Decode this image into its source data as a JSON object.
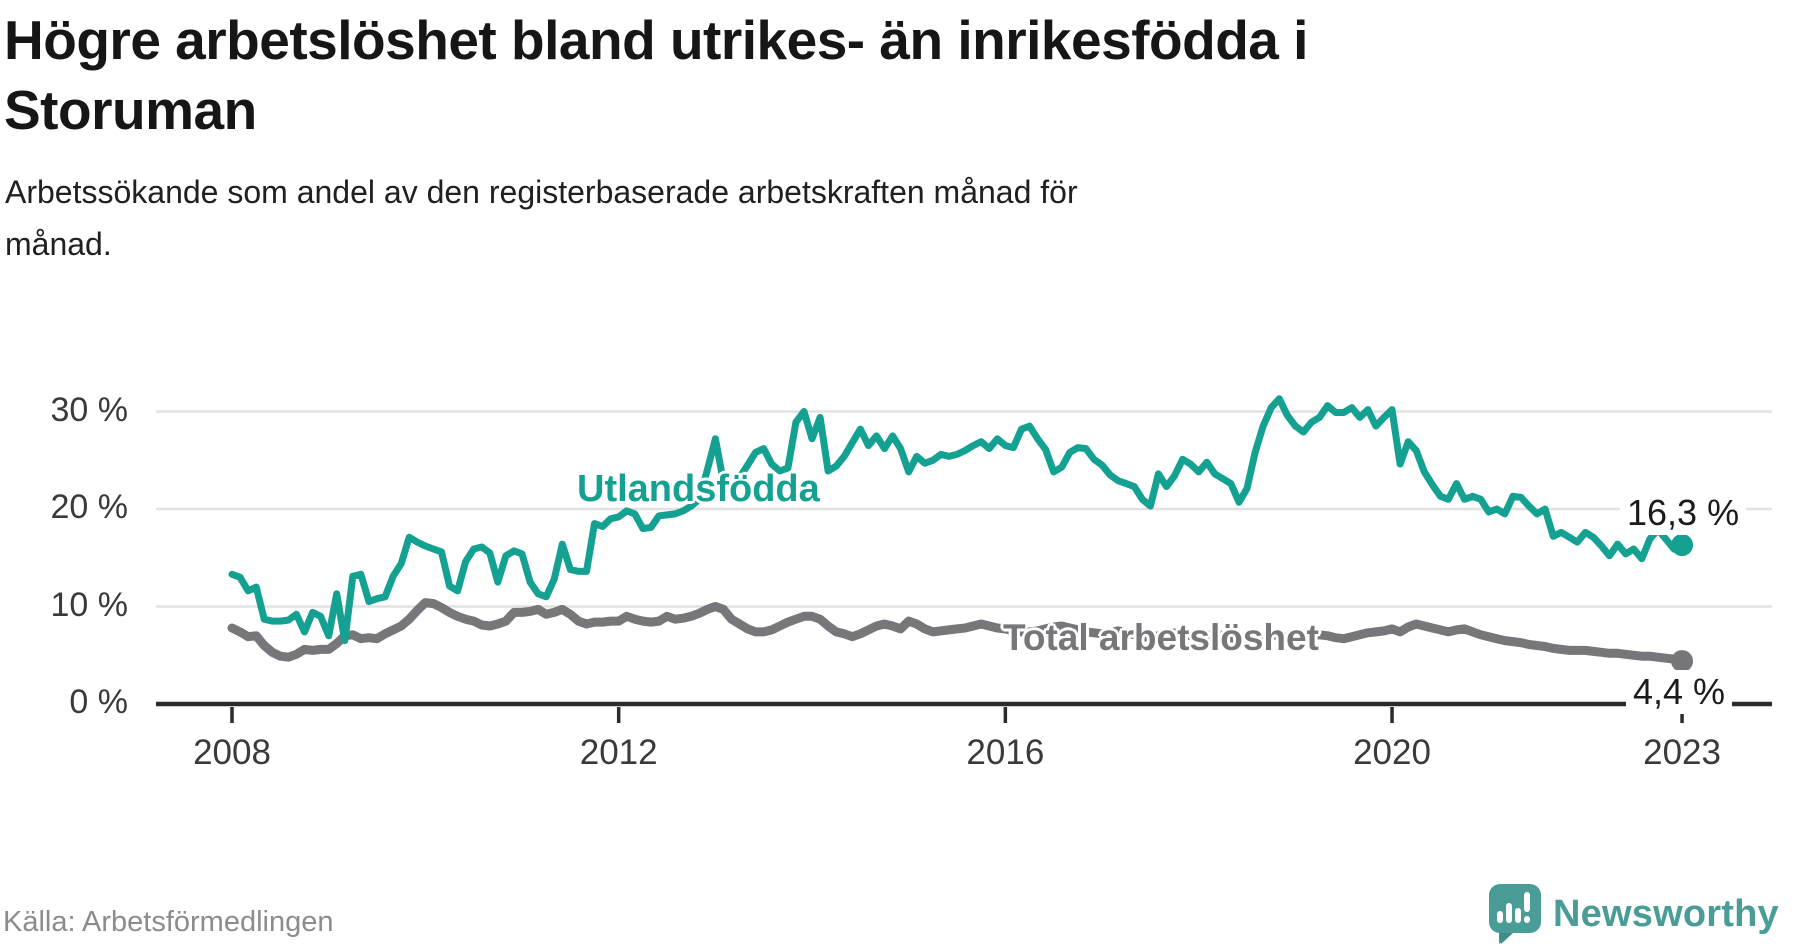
{
  "header": {
    "title_line1": "Högre arbetslöshet bland utrikes- än inrikesfödda i",
    "title_line2": "Storuman",
    "subtitle_line1": "Arbetssökande som andel av den registerbaserade arbetskraften månad för",
    "subtitle_line2": "månad."
  },
  "footer": {
    "source": "Källa: Arbetsförmedlingen",
    "brand": "Newsworthy"
  },
  "colors": {
    "accent_teal": "#15a191",
    "line_gray": "#76777a",
    "logo_teal": "#4a9c96",
    "logo_teal_dark": "#3d8e88",
    "grid": "#e2e2e2",
    "axis": "#2b2b2b"
  },
  "chart_data": {
    "type": "line",
    "title": "Högre arbetslöshet bland utrikes- än inrikesfödda i Storuman",
    "subtitle": "Arbetssökande som andel av den registerbaserade arbetskraften månad för månad.",
    "x_start_year": 2008,
    "points_per_month": 1,
    "x_ticks": [
      {
        "year": 2008,
        "label": "2008"
      },
      {
        "year": 2012,
        "label": "2012"
      },
      {
        "year": 2016,
        "label": "2016"
      },
      {
        "year": 2020,
        "label": "2020"
      },
      {
        "year": 2023,
        "label": "2023"
      }
    ],
    "y_ticks": [
      {
        "value": 0,
        "label": "0 %"
      },
      {
        "value": 10,
        "label": "10 %"
      },
      {
        "value": 20,
        "label": "20 %"
      },
      {
        "value": 30,
        "label": "30 %"
      }
    ],
    "ylim": [
      0,
      32.5
    ],
    "legend_position": "inline-labels",
    "grid": "horizontal",
    "series": [
      {
        "name": "Utlandsfödda",
        "color": "#15a191",
        "end_label": "16,3 %",
        "end_value": 16.3,
        "values": [
          13.3,
          13.0,
          11.6,
          12.0,
          8.7,
          8.5,
          8.5,
          8.6,
          9.2,
          7.4,
          9.4,
          9.0,
          7.0,
          11.3,
          6.5,
          13.1,
          13.3,
          10.5,
          10.8,
          11.0,
          13.1,
          14.4,
          17.1,
          16.6,
          16.2,
          15.9,
          15.6,
          12.1,
          11.6,
          14.6,
          15.9,
          16.1,
          15.5,
          12.5,
          15.2,
          15.7,
          15.4,
          12.5,
          11.3,
          11.0,
          12.8,
          16.4,
          13.8,
          13.6,
          13.6,
          18.5,
          18.2,
          19.0,
          19.2,
          19.8,
          19.5,
          18.0,
          18.1,
          19.3,
          19.4,
          19.5,
          19.8,
          20.3,
          21.0,
          24.0,
          27.2,
          22.8,
          22.3,
          23.2,
          24.5,
          25.8,
          26.2,
          24.6,
          23.9,
          24.2,
          28.9,
          30.0,
          27.2,
          29.4,
          23.9,
          24.4,
          25.4,
          26.8,
          28.2,
          26.5,
          27.5,
          26.2,
          27.5,
          26.2,
          23.8,
          25.4,
          24.7,
          25.0,
          25.6,
          25.4,
          25.6,
          26.0,
          26.5,
          26.9,
          26.2,
          27.2,
          26.5,
          26.3,
          28.2,
          28.5,
          27.2,
          26.1,
          23.8,
          24.3,
          25.8,
          26.3,
          26.2,
          25.1,
          24.5,
          23.5,
          22.9,
          22.6,
          22.3,
          21.0,
          20.3,
          23.6,
          22.3,
          23.4,
          25.1,
          24.6,
          23.8,
          24.8,
          23.6,
          23.1,
          22.6,
          20.7,
          22.1,
          25.8,
          28.5,
          30.4,
          31.3,
          29.6,
          28.5,
          27.9,
          28.9,
          29.4,
          30.6,
          29.9,
          29.9,
          30.4,
          29.4,
          30.2,
          28.5,
          29.4,
          30.2,
          24.6,
          26.9,
          26.0,
          23.8,
          22.5,
          21.3,
          21.0,
          22.6,
          21.0,
          21.3,
          21.0,
          19.7,
          20.0,
          19.5,
          21.3,
          21.2,
          20.3,
          19.5,
          20.0,
          17.2,
          17.6,
          17.1,
          16.6,
          17.6,
          17.1,
          16.2,
          15.2,
          16.4,
          15.4,
          15.9,
          14.9,
          16.9,
          17.9,
          16.9,
          15.9,
          16.3
        ]
      },
      {
        "name": "Total arbetslöshet",
        "color": "#76777a",
        "end_label": "4,4 %",
        "end_value": 4.4,
        "values": [
          7.8,
          7.4,
          6.9,
          7.0,
          6.0,
          5.3,
          4.9,
          4.8,
          5.1,
          5.6,
          5.5,
          5.6,
          5.6,
          6.2,
          7.0,
          7.1,
          6.7,
          6.8,
          6.7,
          7.2,
          7.6,
          8.0,
          8.7,
          9.6,
          10.4,
          10.3,
          9.9,
          9.4,
          9.0,
          8.7,
          8.5,
          8.1,
          8.0,
          8.2,
          8.5,
          9.4,
          9.4,
          9.5,
          9.7,
          9.2,
          9.4,
          9.7,
          9.2,
          8.5,
          8.2,
          8.4,
          8.4,
          8.5,
          8.5,
          9.0,
          8.7,
          8.5,
          8.4,
          8.5,
          9.0,
          8.7,
          8.8,
          9.0,
          9.3,
          9.7,
          10.0,
          9.7,
          8.7,
          8.2,
          7.7,
          7.4,
          7.4,
          7.6,
          8.0,
          8.4,
          8.7,
          9.0,
          9.0,
          8.7,
          8.0,
          7.4,
          7.2,
          6.9,
          7.2,
          7.6,
          8.0,
          8.2,
          8.0,
          7.7,
          8.5,
          8.2,
          7.7,
          7.4,
          7.5,
          7.6,
          7.7,
          7.8,
          8.0,
          8.2,
          8.0,
          7.8,
          7.7,
          7.5,
          7.4,
          7.4,
          7.5,
          7.7,
          7.9,
          8.0,
          7.8,
          7.6,
          7.4,
          7.3,
          7.2,
          7.3,
          7.5,
          7.3,
          7.1,
          6.9,
          6.8,
          7.0,
          7.2,
          7.3,
          7.2,
          7.0,
          6.9,
          7.0,
          7.2,
          7.0,
          6.8,
          6.6,
          6.5,
          6.7,
          6.9,
          7.1,
          7.0,
          6.8,
          6.7,
          6.8,
          7.0,
          7.1,
          7.0,
          6.8,
          6.7,
          6.9,
          7.1,
          7.3,
          7.4,
          7.5,
          7.7,
          7.4,
          7.9,
          8.2,
          8.0,
          7.8,
          7.6,
          7.4,
          7.6,
          7.7,
          7.4,
          7.1,
          6.9,
          6.7,
          6.5,
          6.4,
          6.3,
          6.1,
          6.0,
          5.9,
          5.7,
          5.6,
          5.5,
          5.5,
          5.5,
          5.4,
          5.3,
          5.2,
          5.2,
          5.1,
          5.0,
          4.9,
          4.9,
          4.8,
          4.7,
          4.6,
          4.4
        ]
      }
    ]
  }
}
